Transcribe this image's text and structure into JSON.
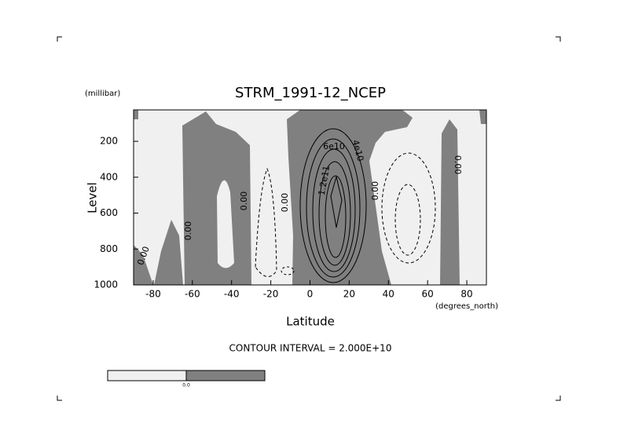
{
  "chart_data": {
    "type": "contour",
    "title": "STRM_1991-12_NCEP",
    "y_units": "(millibar)",
    "y_label": "Level",
    "x_label": "Latitude",
    "x_units": "(degrees_north)",
    "annotation": "CONTOUR INTERVAL = 2.000E+10",
    "xlim": [
      -90,
      90
    ],
    "xticks": [
      -80,
      -60,
      -40,
      -20,
      0,
      20,
      40,
      60,
      80
    ],
    "ylim": [
      1000,
      25
    ],
    "yticks": [
      1000,
      800,
      600,
      400,
      200
    ],
    "contour_labels": [
      "0.00",
      "0.00",
      "0.00",
      "0.00",
      "6e10",
      "4e10",
      "1.2e11",
      "0.00",
      "0.00"
    ],
    "colorbar_labels": [
      "0.0"
    ],
    "colors": {
      "negative": "#808080",
      "positive": "#f0f0f0"
    }
  }
}
